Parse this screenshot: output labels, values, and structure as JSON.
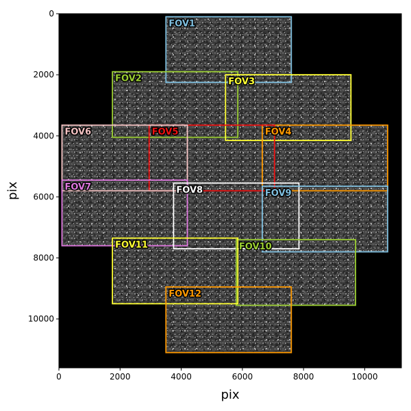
{
  "chart_data": {
    "type": "image-overlay",
    "xlabel": "pix",
    "ylabel": "pix",
    "xlim": [
      0,
      11200
    ],
    "ylim": [
      11600,
      0
    ],
    "xticks": [
      0,
      2000,
      4000,
      6000,
      8000,
      10000
    ],
    "yticks": [
      0,
      2000,
      4000,
      6000,
      8000,
      10000
    ],
    "grid": false,
    "fields_of_view": [
      {
        "name": "FOV1",
        "color": "#7fbfdf",
        "x0": 3500,
        "y0": 100,
        "x1": 7600,
        "y1": 2250
      },
      {
        "name": "FOV2",
        "color": "#9acd32",
        "x0": 1750,
        "y0": 1900,
        "x1": 5850,
        "y1": 4050
      },
      {
        "name": "FOV3",
        "color": "#ffff33",
        "x0": 5450,
        "y0": 2000,
        "x1": 9550,
        "y1": 4150
      },
      {
        "name": "FOV4",
        "color": "#ff9900",
        "x0": 6650,
        "y0": 3650,
        "x1": 10750,
        "y1": 5800
      },
      {
        "name": "FOV5",
        "color": "#ee1111",
        "x0": 2950,
        "y0": 3650,
        "x1": 7050,
        "y1": 5800
      },
      {
        "name": "FOV6",
        "color": "#f4c2c2",
        "x0": 100,
        "y0": 3650,
        "x1": 4200,
        "y1": 5800
      },
      {
        "name": "FOV7",
        "color": "#dd77dd",
        "x0": 100,
        "y0": 5450,
        "x1": 4200,
        "y1": 7600
      },
      {
        "name": "FOV8",
        "color": "#ffffff",
        "x0": 3750,
        "y0": 5550,
        "x1": 7850,
        "y1": 7700
      },
      {
        "name": "FOV9",
        "color": "#7fbfdf",
        "x0": 6650,
        "y0": 5650,
        "x1": 10750,
        "y1": 7800
      },
      {
        "name": "FOV10",
        "color": "#9acd32",
        "x0": 5800,
        "y0": 7400,
        "x1": 9700,
        "y1": 9550
      },
      {
        "name": "FOV11",
        "color": "#ffff33",
        "x0": 1750,
        "y0": 7350,
        "x1": 5850,
        "y1": 9500
      },
      {
        "name": "FOV12",
        "color": "#ff9900",
        "x0": 3500,
        "y0": 8950,
        "x1": 7600,
        "y1": 11100
      }
    ]
  }
}
